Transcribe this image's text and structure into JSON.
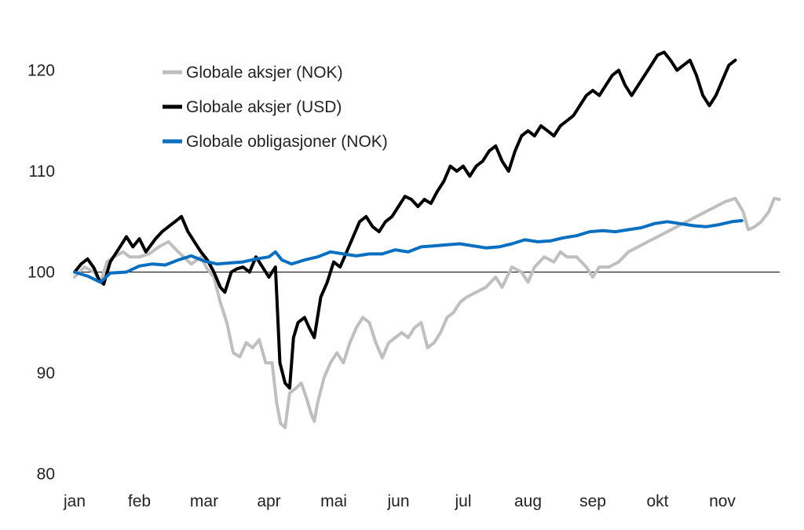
{
  "chart_data": {
    "type": "line",
    "title": "",
    "xlabel": "",
    "ylabel": "",
    "ylim": [
      80,
      125
    ],
    "yticks": [
      80,
      90,
      100,
      110,
      120
    ],
    "xticks": [
      "jan",
      "feb",
      "mar",
      "apr",
      "mai",
      "jun",
      "jul",
      "aug",
      "sep",
      "okt",
      "nov"
    ],
    "baseline": 100,
    "grid": false,
    "legend": "top-left",
    "series": [
      {
        "name": "Globale aksjer (NOK)",
        "color": "#BFBFBF",
        "points": [
          [
            0.0,
            99.5
          ],
          [
            0.15,
            100.5
          ],
          [
            0.3,
            100.0
          ],
          [
            0.4,
            99.0
          ],
          [
            0.5,
            101.0
          ],
          [
            0.6,
            101.5
          ],
          [
            0.75,
            102.0
          ],
          [
            0.85,
            101.5
          ],
          [
            1.0,
            101.5
          ],
          [
            1.15,
            101.8
          ],
          [
            1.3,
            102.5
          ],
          [
            1.45,
            103.0
          ],
          [
            1.6,
            102.0
          ],
          [
            1.8,
            100.8
          ],
          [
            1.95,
            101.5
          ],
          [
            2.05,
            100.3
          ],
          [
            2.15,
            99.5
          ],
          [
            2.25,
            97.0
          ],
          [
            2.35,
            95.0
          ],
          [
            2.45,
            92.0
          ],
          [
            2.55,
            91.6
          ],
          [
            2.65,
            93.0
          ],
          [
            2.75,
            92.5
          ],
          [
            2.85,
            93.3
          ],
          [
            2.95,
            91.0
          ],
          [
            3.05,
            91.0
          ],
          [
            3.12,
            87.0
          ],
          [
            3.18,
            85.0
          ],
          [
            3.25,
            84.6
          ],
          [
            3.32,
            88.0
          ],
          [
            3.4,
            88.4
          ],
          [
            3.5,
            89.0
          ],
          [
            3.58,
            87.5
          ],
          [
            3.65,
            86.0
          ],
          [
            3.7,
            85.2
          ],
          [
            3.75,
            87.0
          ],
          [
            3.85,
            89.5
          ],
          [
            3.95,
            91.0
          ],
          [
            4.05,
            92.0
          ],
          [
            4.15,
            91.0
          ],
          [
            4.25,
            93.0
          ],
          [
            4.35,
            94.5
          ],
          [
            4.45,
            95.5
          ],
          [
            4.55,
            95.0
          ],
          [
            4.65,
            93.0
          ],
          [
            4.75,
            91.5
          ],
          [
            4.85,
            93.0
          ],
          [
            4.95,
            93.5
          ],
          [
            5.05,
            94.0
          ],
          [
            5.15,
            93.5
          ],
          [
            5.25,
            94.5
          ],
          [
            5.35,
            95.0
          ],
          [
            5.45,
            92.5
          ],
          [
            5.55,
            93.0
          ],
          [
            5.65,
            94.0
          ],
          [
            5.75,
            95.5
          ],
          [
            5.85,
            96.0
          ],
          [
            5.95,
            97.0
          ],
          [
            6.05,
            97.5
          ],
          [
            6.2,
            98.0
          ],
          [
            6.35,
            98.5
          ],
          [
            6.5,
            99.5
          ],
          [
            6.6,
            98.5
          ],
          [
            6.75,
            100.5
          ],
          [
            6.9,
            100.0
          ],
          [
            7.0,
            99.0
          ],
          [
            7.1,
            100.5
          ],
          [
            7.25,
            101.5
          ],
          [
            7.4,
            101.0
          ],
          [
            7.5,
            102.0
          ],
          [
            7.6,
            101.5
          ],
          [
            7.75,
            101.5
          ],
          [
            7.9,
            100.5
          ],
          [
            8.0,
            99.5
          ],
          [
            8.1,
            100.5
          ],
          [
            8.25,
            100.5
          ],
          [
            8.4,
            101.0
          ],
          [
            8.55,
            102.0
          ],
          [
            8.7,
            102.5
          ],
          [
            8.85,
            103.0
          ],
          [
            9.0,
            103.5
          ],
          [
            9.15,
            104.0
          ],
          [
            9.3,
            104.5
          ],
          [
            9.45,
            105.0
          ],
          [
            9.6,
            105.5
          ],
          [
            9.75,
            106.0
          ],
          [
            9.9,
            106.5
          ],
          [
            10.05,
            107.0
          ],
          [
            10.2,
            107.3
          ],
          [
            10.32,
            106.0
          ],
          [
            10.4,
            104.2
          ],
          [
            10.5,
            104.5
          ],
          [
            10.6,
            105.0
          ],
          [
            10.72,
            106.0
          ],
          [
            10.8,
            107.3
          ],
          [
            10.88,
            107.2
          ]
        ]
      },
      {
        "name": "Globale aksjer (USD)",
        "color": "#000000",
        "points": [
          [
            0.0,
            100.0
          ],
          [
            0.1,
            100.8
          ],
          [
            0.2,
            101.3
          ],
          [
            0.3,
            100.4
          ],
          [
            0.38,
            99.2
          ],
          [
            0.45,
            98.8
          ],
          [
            0.55,
            101.0
          ],
          [
            0.7,
            102.5
          ],
          [
            0.8,
            103.5
          ],
          [
            0.9,
            102.5
          ],
          [
            1.0,
            103.3
          ],
          [
            1.1,
            102.0
          ],
          [
            1.25,
            103.3
          ],
          [
            1.35,
            104.0
          ],
          [
            1.45,
            104.5
          ],
          [
            1.55,
            105.0
          ],
          [
            1.65,
            105.5
          ],
          [
            1.75,
            104.0
          ],
          [
            1.85,
            103.0
          ],
          [
            1.95,
            102.0
          ],
          [
            2.05,
            101.2
          ],
          [
            2.15,
            100.0
          ],
          [
            2.25,
            98.5
          ],
          [
            2.32,
            98.0
          ],
          [
            2.42,
            100.0
          ],
          [
            2.5,
            100.3
          ],
          [
            2.6,
            100.5
          ],
          [
            2.7,
            100.0
          ],
          [
            2.8,
            101.5
          ],
          [
            2.9,
            100.5
          ],
          [
            3.0,
            99.5
          ],
          [
            3.1,
            100.5
          ],
          [
            3.17,
            91.0
          ],
          [
            3.25,
            89.0
          ],
          [
            3.32,
            88.5
          ],
          [
            3.38,
            93.5
          ],
          [
            3.45,
            95.0
          ],
          [
            3.55,
            95.5
          ],
          [
            3.62,
            94.5
          ],
          [
            3.7,
            93.5
          ],
          [
            3.8,
            97.5
          ],
          [
            3.9,
            99.0
          ],
          [
            4.0,
            101.0
          ],
          [
            4.1,
            100.5
          ],
          [
            4.2,
            102.0
          ],
          [
            4.3,
            103.5
          ],
          [
            4.4,
            105.0
          ],
          [
            4.5,
            105.5
          ],
          [
            4.6,
            104.5
          ],
          [
            4.7,
            104.0
          ],
          [
            4.8,
            105.0
          ],
          [
            4.9,
            105.5
          ],
          [
            5.0,
            106.5
          ],
          [
            5.1,
            107.5
          ],
          [
            5.2,
            107.2
          ],
          [
            5.3,
            106.5
          ],
          [
            5.4,
            107.2
          ],
          [
            5.5,
            106.8
          ],
          [
            5.6,
            108.0
          ],
          [
            5.7,
            109.0
          ],
          [
            5.8,
            110.5
          ],
          [
            5.9,
            110.0
          ],
          [
            6.0,
            110.5
          ],
          [
            6.1,
            109.5
          ],
          [
            6.2,
            110.5
          ],
          [
            6.3,
            111.0
          ],
          [
            6.4,
            112.0
          ],
          [
            6.5,
            112.5
          ],
          [
            6.6,
            111.0
          ],
          [
            6.7,
            110.0
          ],
          [
            6.8,
            112.0
          ],
          [
            6.9,
            113.5
          ],
          [
            7.0,
            114.0
          ],
          [
            7.1,
            113.5
          ],
          [
            7.2,
            114.5
          ],
          [
            7.3,
            114.0
          ],
          [
            7.4,
            113.5
          ],
          [
            7.5,
            114.5
          ],
          [
            7.6,
            115.0
          ],
          [
            7.7,
            115.5
          ],
          [
            7.8,
            116.5
          ],
          [
            7.9,
            117.5
          ],
          [
            8.0,
            118.0
          ],
          [
            8.1,
            117.5
          ],
          [
            8.2,
            118.5
          ],
          [
            8.3,
            119.5
          ],
          [
            8.4,
            120.0
          ],
          [
            8.5,
            118.5
          ],
          [
            8.6,
            117.5
          ],
          [
            8.7,
            118.5
          ],
          [
            8.8,
            119.5
          ],
          [
            8.9,
            120.5
          ],
          [
            9.0,
            121.5
          ],
          [
            9.1,
            121.8
          ],
          [
            9.2,
            121.0
          ],
          [
            9.3,
            120.0
          ],
          [
            9.4,
            120.5
          ],
          [
            9.5,
            121.0
          ],
          [
            9.6,
            119.5
          ],
          [
            9.7,
            117.5
          ],
          [
            9.8,
            116.5
          ],
          [
            9.9,
            117.5
          ],
          [
            10.0,
            119.0
          ],
          [
            10.1,
            120.5
          ],
          [
            10.2,
            121.0
          ]
        ]
      },
      {
        "name": "Globale obligasjoner (NOK)",
        "color": "#0B6FBF",
        "points": [
          [
            0.0,
            100.0
          ],
          [
            0.2,
            99.6
          ],
          [
            0.4,
            99.0
          ],
          [
            0.55,
            99.9
          ],
          [
            0.8,
            100.0
          ],
          [
            1.0,
            100.6
          ],
          [
            1.2,
            100.8
          ],
          [
            1.4,
            100.7
          ],
          [
            1.6,
            101.2
          ],
          [
            1.8,
            101.6
          ],
          [
            2.0,
            101.1
          ],
          [
            2.2,
            100.8
          ],
          [
            2.4,
            100.9
          ],
          [
            2.6,
            101.0
          ],
          [
            2.8,
            101.3
          ],
          [
            3.0,
            101.5
          ],
          [
            3.1,
            102.0
          ],
          [
            3.2,
            101.2
          ],
          [
            3.35,
            100.8
          ],
          [
            3.55,
            101.2
          ],
          [
            3.75,
            101.5
          ],
          [
            3.95,
            102.0
          ],
          [
            4.15,
            101.8
          ],
          [
            4.35,
            101.6
          ],
          [
            4.55,
            101.8
          ],
          [
            4.75,
            101.8
          ],
          [
            4.95,
            102.2
          ],
          [
            5.15,
            102.0
          ],
          [
            5.35,
            102.5
          ],
          [
            5.55,
            102.6
          ],
          [
            5.75,
            102.7
          ],
          [
            5.95,
            102.8
          ],
          [
            6.15,
            102.6
          ],
          [
            6.35,
            102.4
          ],
          [
            6.55,
            102.5
          ],
          [
            6.75,
            102.8
          ],
          [
            6.95,
            103.2
          ],
          [
            7.15,
            103.0
          ],
          [
            7.35,
            103.1
          ],
          [
            7.55,
            103.4
          ],
          [
            7.75,
            103.6
          ],
          [
            7.95,
            104.0
          ],
          [
            8.15,
            104.1
          ],
          [
            8.35,
            104.0
          ],
          [
            8.55,
            104.2
          ],
          [
            8.75,
            104.4
          ],
          [
            8.95,
            104.8
          ],
          [
            9.15,
            105.0
          ],
          [
            9.35,
            104.8
          ],
          [
            9.55,
            104.6
          ],
          [
            9.75,
            104.5
          ],
          [
            9.95,
            104.7
          ],
          [
            10.15,
            105.0
          ],
          [
            10.3,
            105.1
          ]
        ]
      }
    ]
  }
}
